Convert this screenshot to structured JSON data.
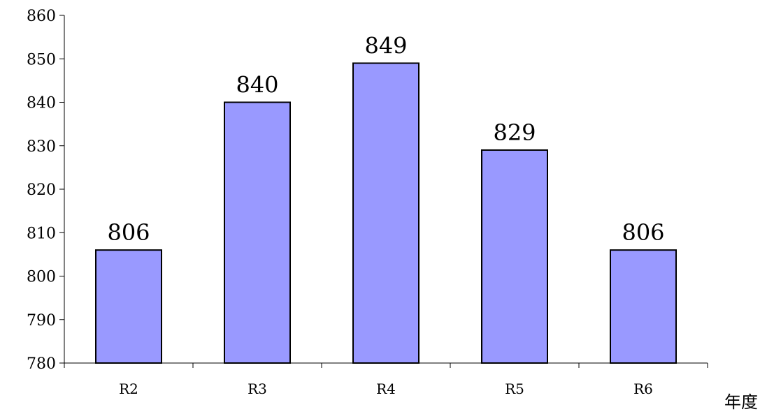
{
  "chart_data": {
    "type": "bar",
    "title": "",
    "xlabel": "年度",
    "ylabel": "",
    "categories": [
      "R2",
      "R3",
      "R4",
      "R5",
      "R6"
    ],
    "values": [
      806,
      840,
      849,
      829,
      806
    ],
    "data_labels": [
      "806",
      "840",
      "849",
      "829",
      "806"
    ],
    "ylim": [
      780,
      860
    ],
    "yticks": [
      780,
      790,
      800,
      810,
      820,
      830,
      840,
      850,
      860
    ],
    "grid": false,
    "legend": "none",
    "colors": {
      "bar_fill": "#9999ff",
      "bar_stroke": "#000000",
      "axis": "#000000"
    }
  }
}
